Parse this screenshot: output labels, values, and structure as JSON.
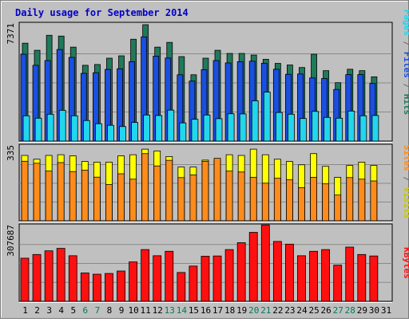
{
  "chart_data": {
    "type": "bar",
    "title": "Daily usage for September 2014",
    "categories": [
      "1",
      "2",
      "3",
      "4",
      "5",
      "6",
      "7",
      "8",
      "9",
      "10",
      "11",
      "12",
      "13",
      "14",
      "15",
      "16",
      "17",
      "18",
      "19",
      "20",
      "21",
      "22",
      "23",
      "24",
      "25",
      "26",
      "27",
      "28",
      "29",
      "30",
      "31"
    ],
    "weekend_days": [
      "6",
      "7",
      "13",
      "14",
      "20",
      "21",
      "27",
      "28"
    ],
    "panels": [
      {
        "id": "hits-files-pages",
        "ymax_label": "7371",
        "ylim": [
          0,
          7371
        ],
        "series": [
          {
            "name": "Hits",
            "color": "#1f7a5a",
            "values": [
              6200,
              5750,
              6700,
              6650,
              5950,
              4800,
              4850,
              5250,
              5400,
              6450,
              7371,
              5950,
              6250,
              5350,
              4200,
              5250,
              5750,
              5550,
              5550,
              5450,
              5180,
              4920,
              4820,
              4660,
              5500,
              4460,
              3700,
              4550,
              4460,
              4070,
              0
            ]
          },
          {
            "name": "Files",
            "color": "#1a4fe0",
            "values": [
              5500,
              4800,
              5100,
              5800,
              5300,
              4290,
              4330,
              4540,
              4580,
              5030,
              6600,
              5380,
              5260,
              4200,
              3800,
              4520,
              5100,
              4950,
              5030,
              5060,
              4930,
              4550,
              4230,
              4250,
              4000,
              3960,
              3270,
              4210,
              4210,
              3650,
              0
            ]
          },
          {
            "name": "Pages",
            "color": "#22d6ee",
            "values": [
              1600,
              1450,
              1700,
              1950,
              1600,
              1300,
              1100,
              1000,
              920,
              1180,
              1650,
              1620,
              1960,
              1150,
              1380,
              1650,
              1420,
              1730,
              1720,
              2550,
              3100,
              1810,
              1700,
              1430,
              1880,
              1500,
              1450,
              1900,
              1600,
              1620,
              0
            ]
          }
        ]
      },
      {
        "id": "visits-sites",
        "ymax_label": "335",
        "ylim": [
          0,
          335
        ],
        "series": [
          {
            "name": "Visits",
            "color": "#ffff00",
            "values": [
              292,
              275,
              292,
              295,
              290,
              265,
              262,
              262,
              290,
              295,
              320,
              312,
              287,
              240,
              240,
              271,
              270,
              295,
              292,
              320,
              295,
              275,
              265,
              250,
              300,
              243,
              194,
              247,
              262,
              247,
              0
            ]
          },
          {
            "name": "Sites",
            "color": "#ff8c1a",
            "values": [
              266,
              257,
              222,
              260,
              220,
              226,
              195,
              162,
              210,
              186,
              300,
              245,
              270,
              193,
              205,
              265,
              279,
              222,
              218,
              194,
              168,
              190,
              183,
              148,
              194,
              165,
              115,
              193,
              186,
              178,
              0
            ]
          }
        ]
      },
      {
        "id": "kbytes",
        "ymax_label": "307687",
        "ylim": [
          0,
          307687
        ],
        "series": [
          {
            "name": "KBytes",
            "color": "#ff1010",
            "values": [
              175000,
              190000,
              205000,
              215000,
              185000,
              115000,
              110000,
              113000,
              123000,
              160000,
              210000,
              185000,
              203000,
              117000,
              143000,
              183000,
              184000,
              210000,
              238000,
              280000,
              310000,
              243000,
              232000,
              185000,
              203000,
              210000,
              147000,
              220000,
              190000,
              184000,
              0
            ]
          }
        ]
      }
    ],
    "right_labels": {
      "panel1": [
        {
          "text": "Pages",
          "color": "#22d6ee"
        },
        {
          "text": " / ",
          "color": "#6a6a6a"
        },
        {
          "text": "Files",
          "color": "#1a4fe0"
        },
        {
          "text": " / ",
          "color": "#6a6a6a"
        },
        {
          "text": "Hits",
          "color": "#1f7a5a"
        }
      ],
      "panel2": [
        {
          "text": "Sites",
          "color": "#ff8c1a"
        },
        {
          "text": " / ",
          "color": "#6a6a6a"
        },
        {
          "text": "Visits",
          "color": "#c8c800"
        }
      ],
      "panel3": [
        {
          "text": "KBytes",
          "color": "#ff1010"
        }
      ]
    },
    "grid": true,
    "legend": "right-side vertical"
  }
}
